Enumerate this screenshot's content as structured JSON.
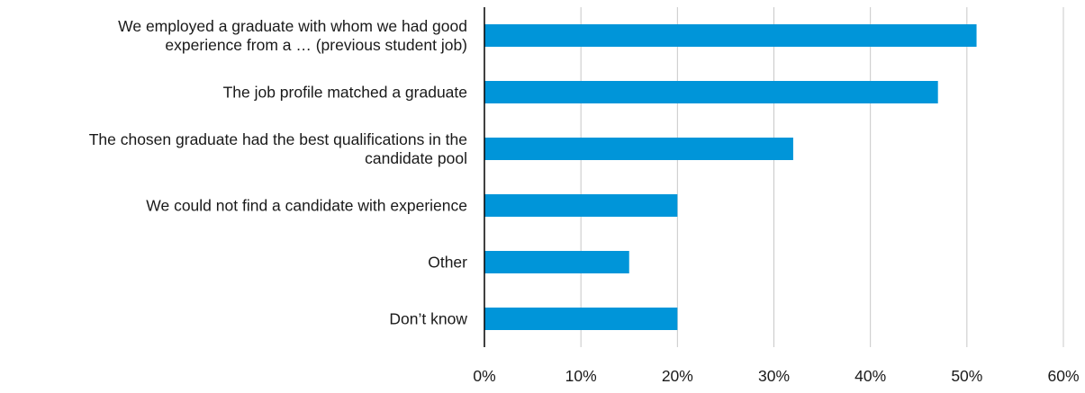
{
  "chart_data": {
    "type": "bar",
    "orientation": "horizontal",
    "categories": [
      [
        "We employed a graduate with whom we had good",
        "experience from a … (previous student job)"
      ],
      [
        "The job profile matched a graduate"
      ],
      [
        "The chosen graduate had the best qualifications in the",
        "candidate pool"
      ],
      [
        "We could not find a candidate with experience"
      ],
      [
        "Other"
      ],
      [
        "Don’t know"
      ]
    ],
    "values": [
      51,
      47,
      32,
      20,
      15,
      20
    ],
    "xlim": [
      0,
      60
    ],
    "x_ticks": [
      0,
      10,
      20,
      30,
      40,
      50,
      60
    ],
    "x_tick_labels": [
      "0%",
      "10%",
      "20%",
      "30%",
      "40%",
      "50%",
      "60%"
    ],
    "grid": true,
    "legend": "none",
    "bar_color": "#0095d9",
    "grid_color": "#c8c8c8",
    "axis_color": "#000000"
  }
}
